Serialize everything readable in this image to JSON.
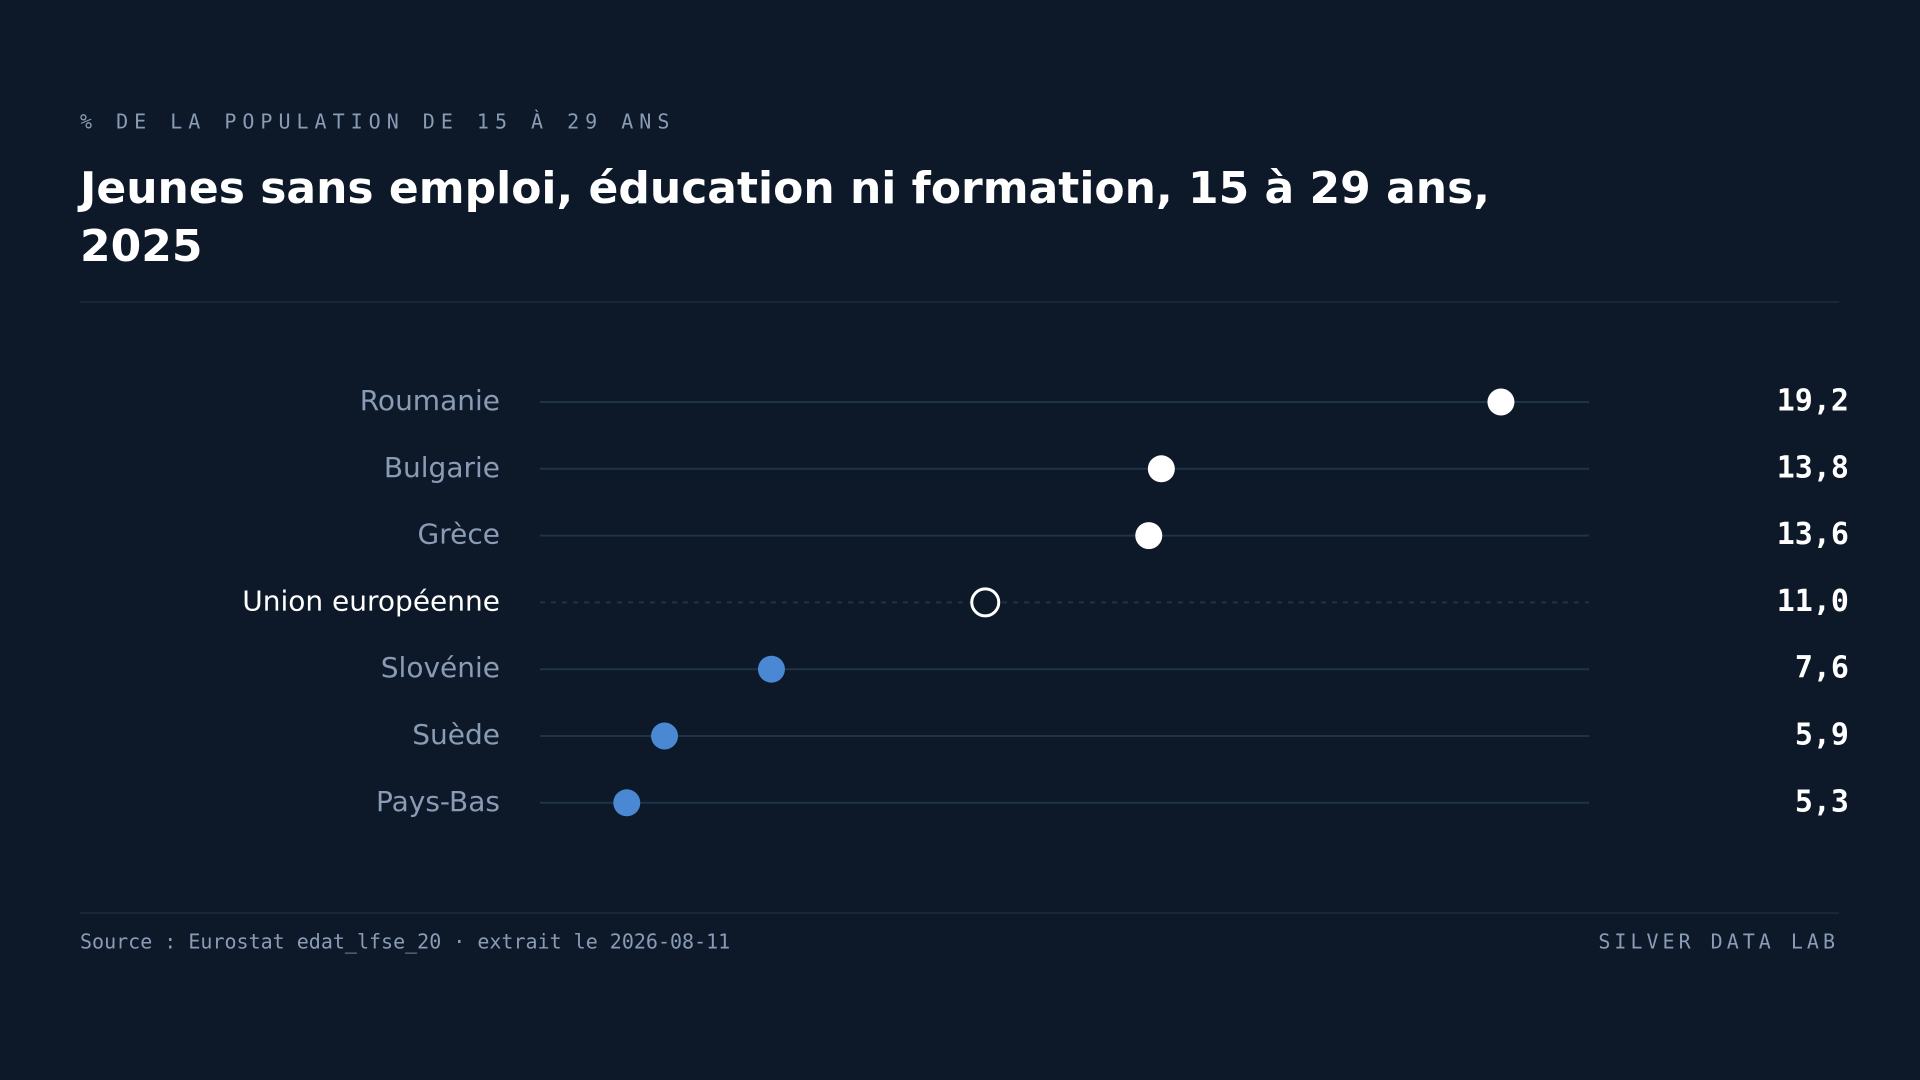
{
  "chart_data": {
    "type": "dot",
    "subtitle": "% DE LA POPULATION DE 15 À 29 ANS",
    "title": "Jeunes sans emploi, éducation ni formation, 15 à 29 ans, 2025",
    "categories": [
      "Roumanie",
      "Bulgarie",
      "Grèce",
      "Union européenne",
      "Slovénie",
      "Suède",
      "Pays-Bas"
    ],
    "values": [
      19.2,
      13.8,
      13.6,
      11.0,
      7.6,
      5.9,
      5.3
    ],
    "value_labels": [
      "19,2",
      "13,8",
      "13,6",
      "11,0",
      "7,6",
      "5,9",
      "5,3"
    ],
    "colors": [
      "#ffffff",
      "#ffffff",
      "#ffffff",
      "#ffffff",
      "#4a88d4",
      "#4a88d4",
      "#4a88d4"
    ],
    "marker_styles": [
      "filled",
      "filled",
      "filled",
      "hollow",
      "filled",
      "filled",
      "filled"
    ],
    "xlim": [
      3.92,
      20.6
    ],
    "source": "Source : Eurostat edat_lfse_20 · extrait le 2026-08-11",
    "brand": "SILVER DATA LAB"
  }
}
